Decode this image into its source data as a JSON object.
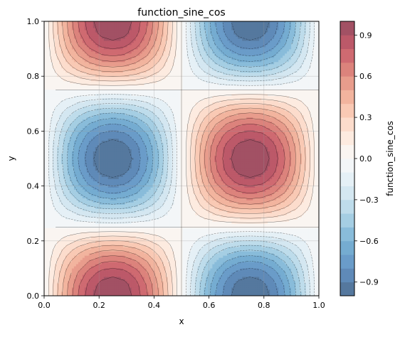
{
  "chart_data": {
    "type": "heatmap",
    "title": "function_sine_cos",
    "xlabel": "x",
    "ylabel": "y",
    "xlim": [
      0,
      1
    ],
    "ylim": [
      0,
      1
    ],
    "x_ticks": [
      "0.0",
      "0.2",
      "0.4",
      "0.6",
      "0.8",
      "1.0"
    ],
    "y_ticks": [
      "0.0",
      "0.2",
      "0.4",
      "0.6",
      "0.8",
      "1.0"
    ],
    "grid": true,
    "function": "z = sin(2*pi*x) * cos(2*pi*y)",
    "grid_resolution": 25,
    "colormap": "RdBu_r",
    "alpha": 0.7,
    "colorbar": {
      "label": "function_sine_cos",
      "levels": [
        -1.0,
        -0.9,
        -0.8,
        -0.7,
        -0.6,
        -0.5,
        -0.4,
        -0.3,
        -0.2,
        -0.1,
        0.0,
        0.1,
        0.2,
        0.3,
        0.4,
        0.5,
        0.6,
        0.7,
        0.8,
        0.9,
        1.0
      ],
      "tick_labels": [
        "-0.9",
        "-0.6",
        "-0.3",
        "0.0",
        "0.3",
        "0.6",
        "0.9"
      ],
      "tick_values": [
        -0.9,
        -0.6,
        -0.3,
        0.0,
        0.3,
        0.6,
        0.9
      ]
    },
    "extrema": [
      {
        "x": 0.25,
        "y": 1.0,
        "z": 1.0
      },
      {
        "x": 0.75,
        "y": 1.0,
        "z": -1.0
      },
      {
        "x": 0.25,
        "y": 0.5,
        "z": -1.0
      },
      {
        "x": 0.75,
        "y": 0.5,
        "z": 1.0
      },
      {
        "x": 0.25,
        "y": 0.0,
        "z": 1.0
      },
      {
        "x": 0.75,
        "y": 0.0,
        "z": -1.0
      }
    ]
  }
}
